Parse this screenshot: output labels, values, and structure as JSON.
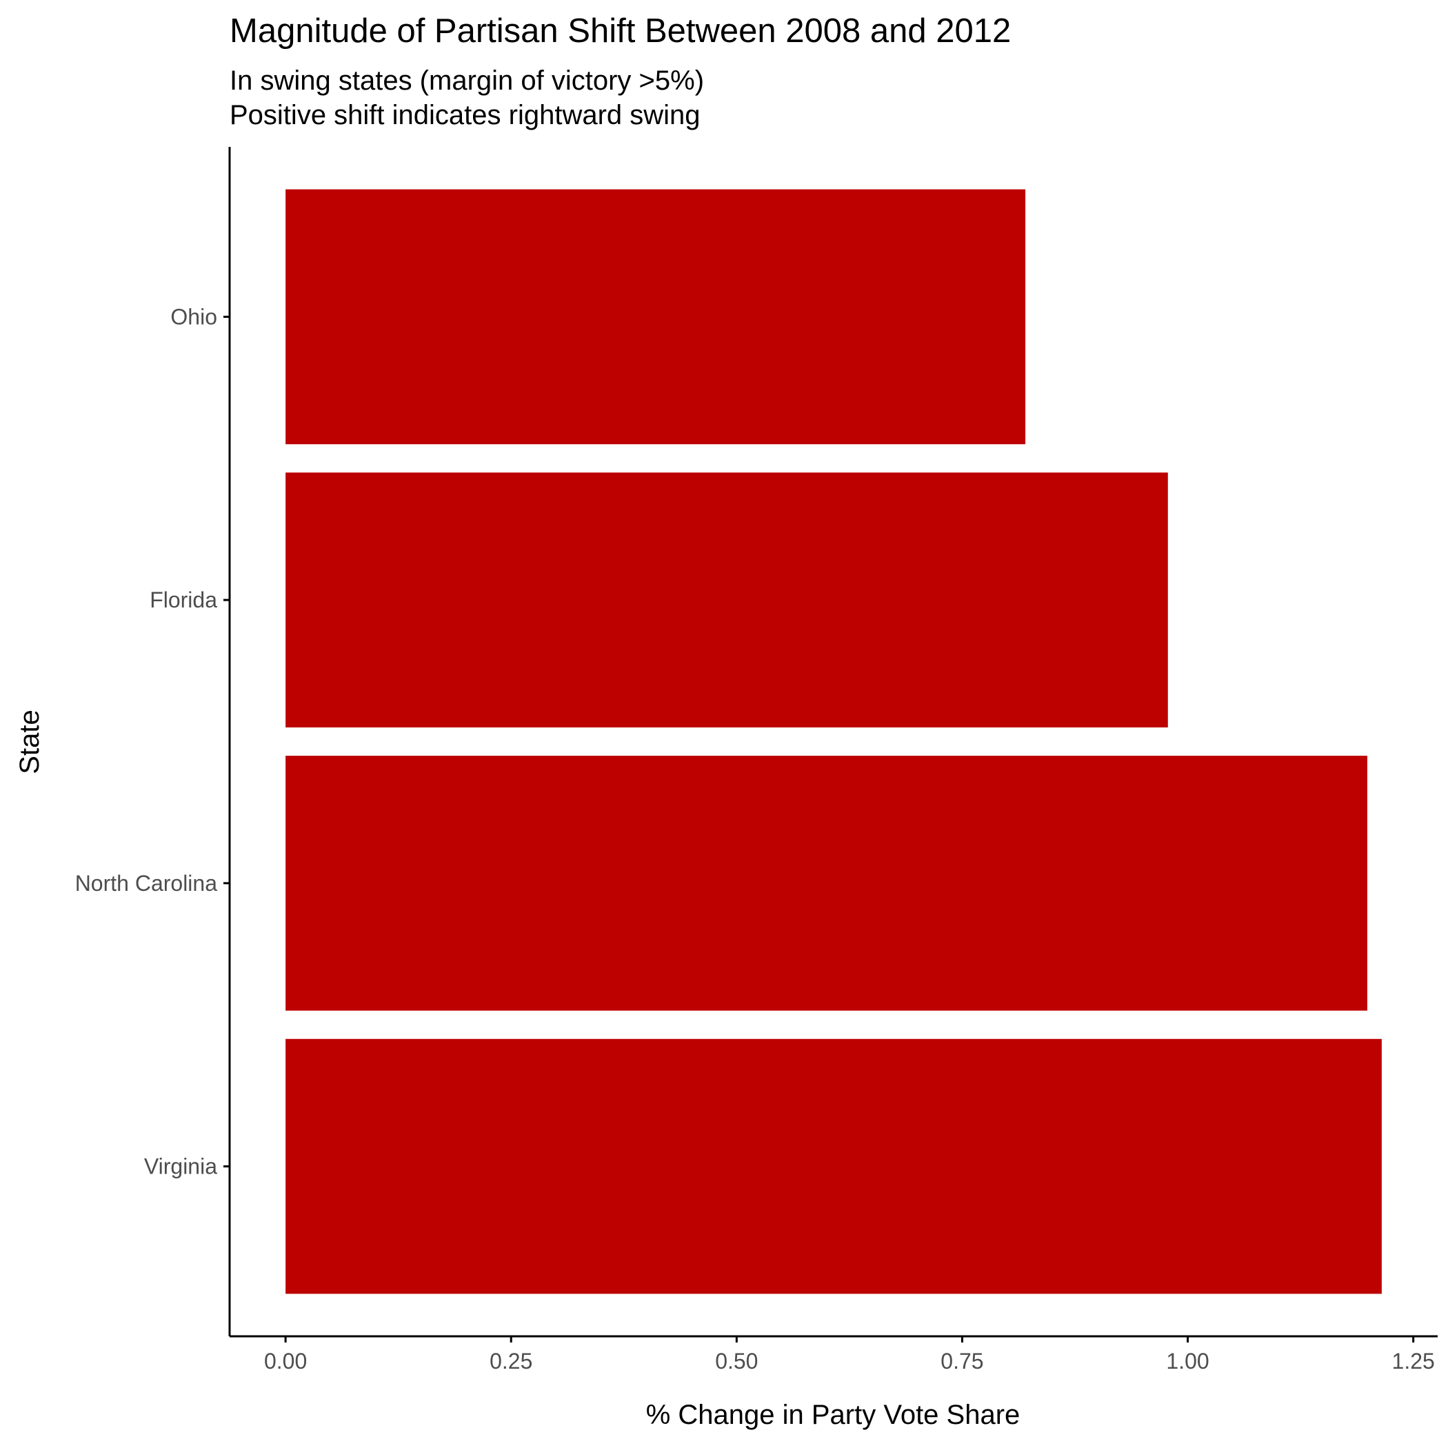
{
  "chart_data": {
    "type": "bar",
    "orientation": "horizontal",
    "title": "Magnitude of Partisan Shift Between 2008 and 2012",
    "subtitle_lines": [
      "In swing states (margin of victory >5%)",
      "Positive shift indicates rightward swing"
    ],
    "xlabel": "% Change in Party Vote Share",
    "ylabel": "State",
    "categories": [
      "Ohio",
      "Florida",
      "North Carolina",
      "Virginia"
    ],
    "values": [
      0.82,
      0.978,
      1.199,
      1.215
    ],
    "xlim": [
      -0.062,
      1.277
    ],
    "xticks": [
      0.0,
      0.25,
      0.5,
      0.75,
      1.0,
      1.25
    ],
    "xtick_labels": [
      "0.00",
      "0.25",
      "0.50",
      "0.75",
      "1.00",
      "1.25"
    ],
    "bar_color": "#bd0000",
    "grid": false,
    "legend": "none"
  }
}
